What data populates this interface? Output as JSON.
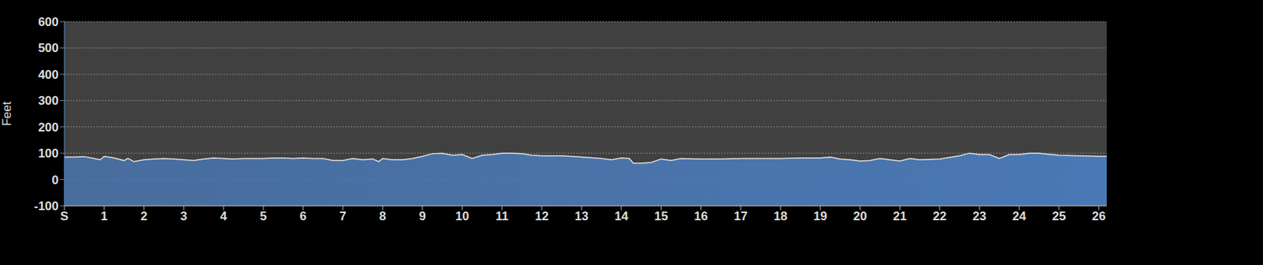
{
  "chart_data": {
    "type": "area",
    "y_label": "Feet",
    "color": "#4a78b4",
    "grid": true,
    "xlim": [
      0,
      26.2
    ],
    "xticks": [
      {
        "value": 0,
        "label": "S"
      },
      1,
      2,
      3,
      4,
      5,
      6,
      7,
      8,
      9,
      10,
      11,
      12,
      13,
      14,
      15,
      16,
      17,
      18,
      19,
      20,
      21,
      22,
      23,
      24,
      25,
      26
    ],
    "ylim": [
      -100,
      600
    ],
    "yticks": [
      -100,
      0,
      100,
      200,
      300,
      400,
      500,
      600
    ],
    "x": [
      0,
      0.25,
      0.5,
      0.75,
      0.9,
      1.0,
      1.25,
      1.5,
      1.6,
      1.75,
      2,
      2.25,
      2.5,
      2.75,
      3,
      3.25,
      3.5,
      3.75,
      4,
      4.25,
      4.5,
      4.75,
      5,
      5.25,
      5.5,
      5.75,
      6,
      6.25,
      6.5,
      6.75,
      7,
      7.25,
      7.5,
      7.75,
      7.9,
      8,
      8.25,
      8.5,
      8.75,
      9,
      9.25,
      9.5,
      9.75,
      10,
      10.25,
      10.5,
      10.75,
      11,
      11.25,
      11.5,
      11.75,
      12,
      12.5,
      13,
      13.5,
      13.75,
      14,
      14.2,
      14.3,
      14.5,
      14.75,
      15,
      15.25,
      15.5,
      16,
      16.5,
      17,
      17.5,
      18,
      18.5,
      19,
      19.25,
      19.5,
      19.75,
      20,
      20.25,
      20.5,
      20.75,
      21,
      21.25,
      21.5,
      22,
      22.5,
      22.75,
      23,
      23.25,
      23.5,
      23.75,
      24,
      24.25,
      24.5,
      25,
      25.5,
      26,
      26.2
    ],
    "values": [
      85,
      85,
      87,
      80,
      75,
      88,
      82,
      72,
      80,
      68,
      75,
      78,
      80,
      78,
      75,
      72,
      78,
      82,
      80,
      78,
      80,
      80,
      80,
      82,
      82,
      80,
      82,
      80,
      80,
      72,
      72,
      80,
      75,
      78,
      68,
      80,
      75,
      75,
      80,
      88,
      98,
      100,
      92,
      95,
      80,
      92,
      95,
      100,
      100,
      98,
      92,
      90,
      90,
      85,
      80,
      75,
      82,
      80,
      62,
      62,
      65,
      78,
      72,
      80,
      78,
      78,
      80,
      80,
      80,
      82,
      82,
      85,
      78,
      75,
      70,
      72,
      80,
      75,
      70,
      80,
      75,
      78,
      90,
      100,
      95,
      95,
      80,
      95,
      95,
      100,
      100,
      92,
      90,
      88,
      88
    ]
  }
}
